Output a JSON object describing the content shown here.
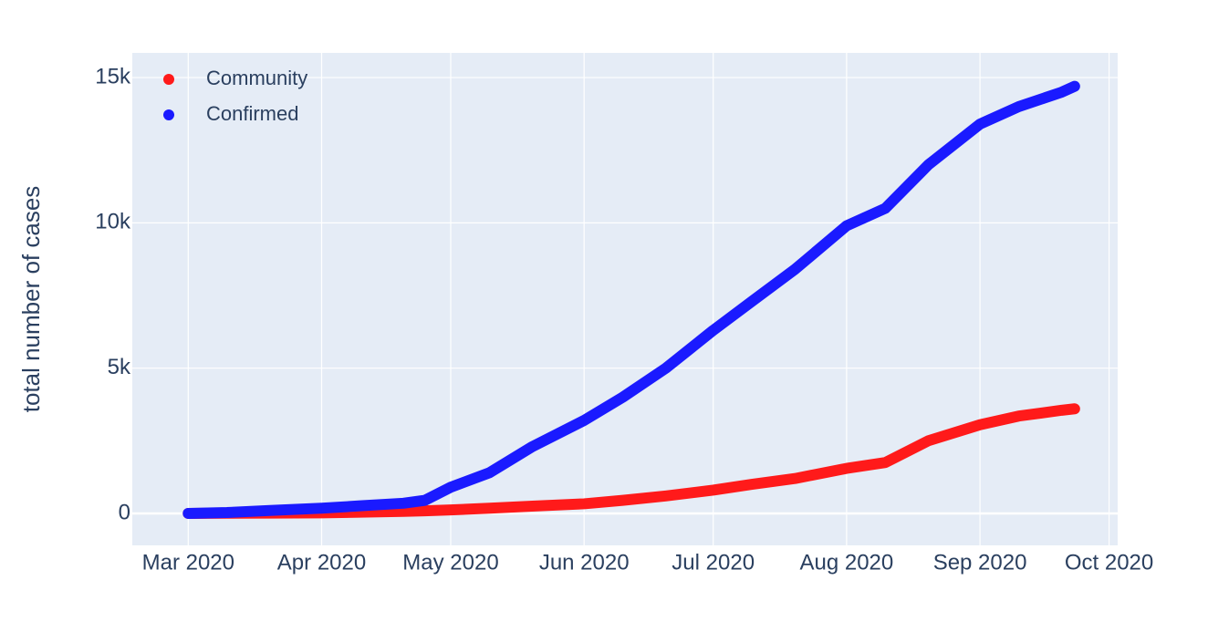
{
  "chart_data": {
    "type": "line",
    "y_label": "total number of cases",
    "x": [
      "2020-03-01",
      "2020-03-10",
      "2020-03-20",
      "2020-04-01",
      "2020-04-10",
      "2020-04-20",
      "2020-04-25",
      "2020-05-01",
      "2020-05-10",
      "2020-05-20",
      "2020-06-01",
      "2020-06-10",
      "2020-06-20",
      "2020-07-01",
      "2020-07-10",
      "2020-07-20",
      "2020-08-01",
      "2020-08-10",
      "2020-08-20",
      "2020-09-01",
      "2020-09-10",
      "2020-09-20",
      "2020-09-23"
    ],
    "series": [
      {
        "name": "Community",
        "color": "#ff1a1a",
        "values": [
          0,
          5,
          10,
          20,
          40,
          70,
          90,
          120,
          180,
          250,
          330,
          450,
          600,
          800,
          1000,
          1200,
          1550,
          1750,
          2500,
          3050,
          3350,
          3550,
          3600
        ]
      },
      {
        "name": "Confirmed",
        "color": "#1a1aff",
        "values": [
          0,
          30,
          100,
          180,
          260,
          350,
          450,
          900,
          1400,
          2300,
          3200,
          4000,
          5000,
          6300,
          7300,
          8400,
          9900,
          10500,
          12000,
          13400,
          14000,
          14500,
          14700
        ]
      }
    ],
    "xlim": [
      "2020-02-17",
      "2020-10-03"
    ],
    "xticks": [
      {
        "value": "2020-03-01",
        "label": "Mar 2020"
      },
      {
        "value": "2020-04-01",
        "label": "Apr 2020"
      },
      {
        "value": "2020-05-01",
        "label": "May 2020"
      },
      {
        "value": "2020-06-01",
        "label": "Jun 2020"
      },
      {
        "value": "2020-07-01",
        "label": "Jul 2020"
      },
      {
        "value": "2020-08-01",
        "label": "Aug 2020"
      },
      {
        "value": "2020-09-01",
        "label": "Sep 2020"
      },
      {
        "value": "2020-10-01",
        "label": "Oct 2020"
      }
    ],
    "ylim": [
      -1100,
      15850
    ],
    "yticks": [
      0,
      {
        "value": 5000,
        "label": "5k"
      },
      {
        "value": 10000,
        "label": "10k"
      },
      {
        "value": 15000,
        "label": "15k"
      }
    ],
    "grid": true,
    "legend_position": "upper-left"
  }
}
